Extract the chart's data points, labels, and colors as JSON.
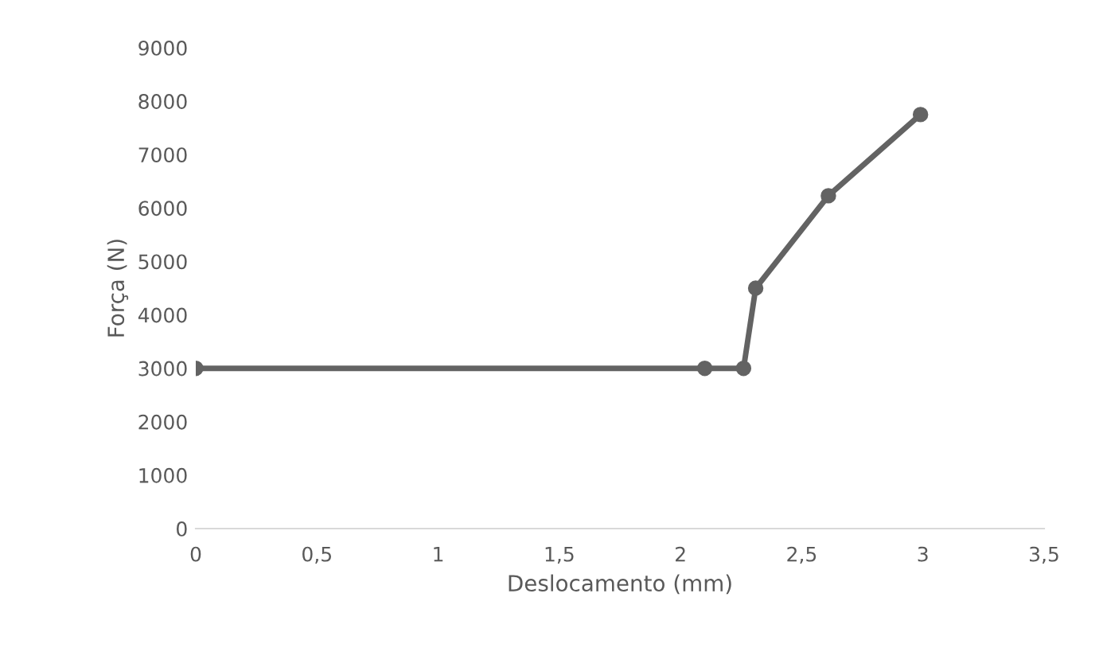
{
  "chart_data": {
    "type": "line",
    "xlabel": "Deslocamento (mm)",
    "ylabel": "Força (N)",
    "x": [
      0,
      2.1,
      2.26,
      2.31,
      2.61,
      2.99
    ],
    "series": [
      {
        "color": "#636363",
        "values": [
          3000,
          3000,
          3000,
          4500,
          6230,
          7750
        ]
      }
    ],
    "xlim": [
      0,
      3.5
    ],
    "xticks": [
      {
        "value": 0,
        "label": "0"
      },
      {
        "value": 0.5,
        "label": "0,5"
      },
      {
        "value": 1,
        "label": "1"
      },
      {
        "value": 1.5,
        "label": "1,5"
      },
      {
        "value": 2,
        "label": "2"
      },
      {
        "value": 2.5,
        "label": "2,5"
      },
      {
        "value": 3,
        "label": "3"
      },
      {
        "value": 3.5,
        "label": "3,5"
      }
    ],
    "ylim": [
      0,
      9000
    ],
    "yticks": [
      0,
      1000,
      2000,
      3000,
      4000,
      5000,
      6000,
      7000,
      8000,
      9000
    ],
    "marker": "circle",
    "grid": false,
    "legend": false
  }
}
